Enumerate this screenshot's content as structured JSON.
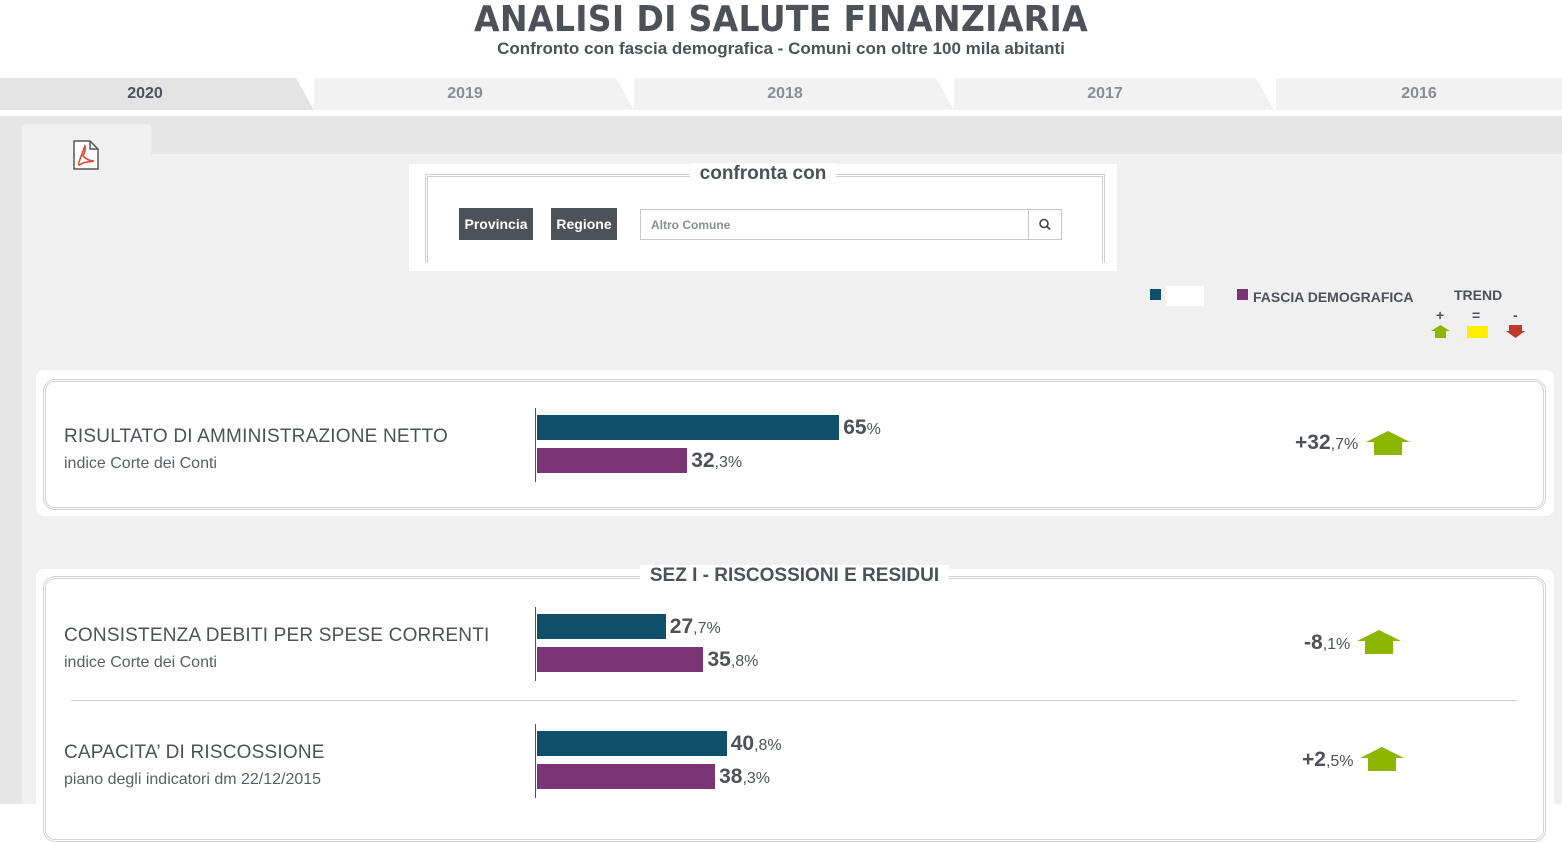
{
  "header": {
    "title": "ANALISI DI SALUTE FINANZIARIA",
    "subtitle": "Confronto con fascia demografica - Comuni con oltre 100 mila abitanti"
  },
  "year_tabs": [
    {
      "label": "2020",
      "active": true
    },
    {
      "label": "2019",
      "active": false
    },
    {
      "label": "2018",
      "active": false
    },
    {
      "label": "2017",
      "active": false
    },
    {
      "label": "2016",
      "active": false
    }
  ],
  "toolbar": {
    "pdf_icon": "pdf-icon"
  },
  "compare": {
    "title": "confronta con",
    "provincia_label": "Provincia",
    "regione_label": "Regione",
    "search_placeholder": "Altro Comune",
    "search_icon": "search-icon"
  },
  "legend": {
    "series_a_color": "#0f4f6c",
    "series_a_label": "",
    "series_b_color": "#7b3476",
    "series_b_label": "FASCIA DEMOGRAFICA",
    "trend_title": "TREND",
    "trend_plus": "+",
    "trend_equal": "=",
    "trend_minus": "-",
    "trend_up_color": "#8db600",
    "trend_equal_color": "#ffee00",
    "trend_down_color": "#c0392b"
  },
  "section_1": {
    "title": "SEZ I - RISCOSSIONI E RESIDUI"
  },
  "indicators": [
    {
      "title": "RISULTATO DI AMMINISTRAZIONE NETTO",
      "subtitle": "indice Corte dei Conti",
      "value_a_int": "65",
      "value_a_dec": "%",
      "value_a": 65,
      "value_b_int": "32",
      "value_b_dec": ",3%",
      "value_b": 32.3,
      "trend_int": "+32",
      "trend_dec": ",7%",
      "trend": "up"
    },
    {
      "title": "CONSISTENZA DEBITI PER SPESE CORRENTI",
      "subtitle": "indice Corte dei Conti",
      "value_a_int": "27",
      "value_a_dec": ",7%",
      "value_a": 27.7,
      "value_b_int": "35",
      "value_b_dec": ",8%",
      "value_b": 35.8,
      "trend_int": "-8",
      "trend_dec": ",1%",
      "trend": "up"
    },
    {
      "title": "CAPACITA’ DI RISCOSSIONE",
      "subtitle": "piano degli indicatori dm 22/12/2015",
      "value_a_int": "40",
      "value_a_dec": ",8%",
      "value_a": 40.8,
      "value_b_int": "38",
      "value_b_dec": ",3%",
      "value_b": 38.3,
      "trend_int": "+2",
      "trend_dec": ",5%",
      "trend": "up"
    }
  ]
}
